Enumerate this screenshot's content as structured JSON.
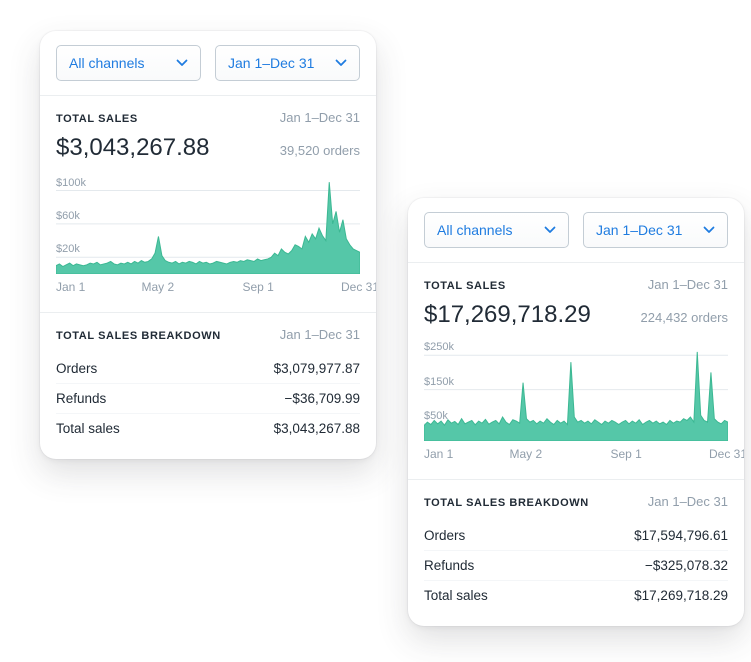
{
  "colors": {
    "accent": "#1f7ce0",
    "chart_fill": "#55c7a8",
    "chart_stroke": "#3cb893",
    "grid": "#e4e9ed",
    "text_dark": "#212b36",
    "text_muted": "#919eab"
  },
  "icons": {
    "chevron_down": "chevron-down"
  },
  "cards": [
    {
      "channel_filter": "All channels",
      "date_filter": "Jan 1–Dec 31",
      "total_sales": {
        "heading": "TOTAL SALES",
        "date_range": "Jan 1–Dec 31",
        "amount": "$3,043,267.88",
        "orders": "39,520 orders"
      },
      "breakdown": {
        "heading": "TOTAL SALES BREAKDOWN",
        "date_range": "Jan 1–Dec 31",
        "rows": [
          {
            "label": "Orders",
            "value": "$3,079,977.87"
          },
          {
            "label": "Refunds",
            "value": "−$36,709.99"
          },
          {
            "label": "Total sales",
            "value": "$3,043,267.88"
          }
        ]
      }
    },
    {
      "channel_filter": "All channels",
      "date_filter": "Jan 1–Dec 31",
      "total_sales": {
        "heading": "TOTAL SALES",
        "date_range": "Jan 1–Dec 31",
        "amount": "$17,269,718.29",
        "orders": "224,432 orders"
      },
      "breakdown": {
        "heading": "TOTAL SALES BREAKDOWN",
        "date_range": "Jan 1–Dec 31",
        "rows": [
          {
            "label": "Orders",
            "value": "$17,594,796.61"
          },
          {
            "label": "Refunds",
            "value": "−$325,078.32"
          },
          {
            "label": "Total sales",
            "value": "$17,269,718.29"
          }
        ]
      }
    }
  ],
  "chart_data": [
    {
      "type": "area",
      "title": "Total sales Jan 1–Dec 31",
      "units": "thousands of USD",
      "ylim": [
        0,
        115
      ],
      "yticks": [
        20,
        60,
        100
      ],
      "ytick_labels": [
        "$20k",
        "$60k",
        "$100k"
      ],
      "xticks": [
        {
          "label": "Jan 1",
          "pos": 0
        },
        {
          "label": "May 2",
          "pos": 0.335
        },
        {
          "label": "Sep 1",
          "pos": 0.665
        },
        {
          "label": "Dec 31",
          "pos": 1
        }
      ],
      "grid": true,
      "values": [
        10,
        12,
        9,
        11,
        13,
        10,
        12,
        11,
        10,
        11,
        13,
        12,
        14,
        11,
        12,
        13,
        15,
        12,
        11,
        13,
        12,
        14,
        12,
        15,
        13,
        16,
        14,
        15,
        18,
        25,
        45,
        22,
        16,
        14,
        13,
        15,
        12,
        14,
        13,
        15,
        14,
        12,
        15,
        13,
        14,
        12,
        13,
        15,
        14,
        13,
        12,
        14,
        15,
        14,
        16,
        15,
        17,
        16,
        15,
        18,
        16,
        17,
        18,
        20,
        25,
        22,
        30,
        26,
        24,
        28,
        35,
        33,
        30,
        45,
        38,
        48,
        42,
        55,
        46,
        40,
        110,
        60,
        75,
        50,
        65,
        42,
        35,
        30,
        28,
        26
      ]
    },
    {
      "type": "area",
      "title": "Total sales Jan 1–Dec 31",
      "units": "thousands of USD",
      "ylim": [
        0,
        280
      ],
      "yticks": [
        50,
        150,
        250
      ],
      "ytick_labels": [
        "$50k",
        "$150k",
        "$250k"
      ],
      "xticks": [
        {
          "label": "Jan 1",
          "pos": 0
        },
        {
          "label": "May 2",
          "pos": 0.335
        },
        {
          "label": "Sep 1",
          "pos": 0.665
        },
        {
          "label": "Dec 31",
          "pos": 1
        }
      ],
      "grid": true,
      "values": [
        45,
        55,
        48,
        60,
        50,
        58,
        46,
        62,
        52,
        57,
        48,
        65,
        50,
        55,
        60,
        47,
        58,
        52,
        63,
        49,
        55,
        60,
        50,
        70,
        55,
        48,
        62,
        58,
        52,
        170,
        65,
        55,
        60,
        50,
        58,
        52,
        65,
        55,
        48,
        60,
        52,
        58,
        48,
        230,
        70,
        55,
        60,
        52,
        58,
        50,
        62,
        55,
        48,
        58,
        52,
        60,
        55,
        48,
        55,
        60,
        50,
        58,
        52,
        62,
        48,
        55,
        60,
        52,
        58,
        50,
        55,
        48,
        60,
        52,
        58,
        55,
        65,
        60,
        70,
        55,
        260,
        75,
        60,
        55,
        200,
        65,
        55,
        50,
        60,
        55
      ]
    }
  ]
}
